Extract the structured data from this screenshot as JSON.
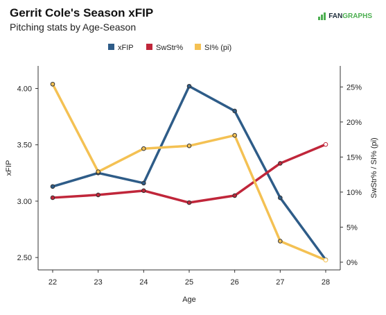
{
  "header": {
    "title": "Gerrit Cole's Season xFIP",
    "subtitle": "Pitching stats by Age-Season",
    "logo_text_a": "FAN",
    "logo_text_b": "GRAPHS"
  },
  "chart_data": {
    "type": "line",
    "title": "Gerrit Cole's Season xFIP",
    "subtitle": "Pitching stats by Age-Season",
    "xlabel": "Age",
    "ylabel_left": "xFIP",
    "ylabel_right": "SwStr% / SI% (pi)",
    "x": [
      22,
      23,
      24,
      25,
      26,
      27,
      28
    ],
    "y_left_lim": [
      2.39,
      4.2
    ],
    "y_left_ticks": [
      2.5,
      3.0,
      3.5,
      4.0
    ],
    "y_left_tick_labels": [
      "2.50",
      "3.00",
      "3.50",
      "4.00"
    ],
    "y_right_lim": [
      -0.011,
      0.28
    ],
    "y_right_ticks": [
      0,
      0.05,
      0.1,
      0.15,
      0.2,
      0.25
    ],
    "y_right_tick_labels": [
      "0%",
      "5%",
      "10%",
      "15%",
      "20%",
      "25%"
    ],
    "legend_position": "top-center",
    "grid": false,
    "series": [
      {
        "name": "xFIP",
        "axis": "left",
        "color": "#2e5c88",
        "values": [
          3.13,
          3.25,
          3.16,
          4.02,
          3.8,
          3.03,
          2.48
        ]
      },
      {
        "name": "SwStr%",
        "axis": "right",
        "color": "#c0263a",
        "values": [
          0.092,
          0.096,
          0.102,
          0.085,
          0.095,
          0.141,
          0.168
        ]
      },
      {
        "name": "SI% (pi)",
        "axis": "right",
        "color": "#f4c153",
        "values": [
          0.254,
          0.129,
          0.162,
          0.166,
          0.181,
          0.03,
          0.003
        ]
      }
    ]
  }
}
